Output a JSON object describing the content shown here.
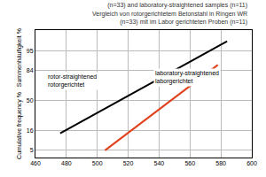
{
  "chart_data": {
    "type": "line",
    "title": "(n=33) and laboratory-straightened samples (n=11)\nVergleich von rotorgerichtetem Betonstahl in Ringen WR\n(n=33) mit im Labor gerichteten Proben (n=11)",
    "y_label": "Cumulative frequency %   Summenhäufigkeit %",
    "series": [
      {
        "name": "rotor-straightened\nrotorgerichtet",
        "color": "#000000",
        "x": [
          476,
          584
        ],
        "values": [
          14,
          97.5
        ]
      },
      {
        "name": "laboratory-straightened\nlaborgerichtet",
        "color": "#e0401a",
        "x": [
          505,
          578
        ],
        "values": [
          5,
          88
        ]
      }
    ],
    "xlim": [
      460,
      600
    ],
    "xticks": [
      460,
      480,
      500,
      520,
      540,
      560,
      580,
      600
    ],
    "ylim": [
      3,
      99
    ],
    "yticks": [
      5,
      16,
      50,
      84,
      95
    ],
    "grid": true
  }
}
